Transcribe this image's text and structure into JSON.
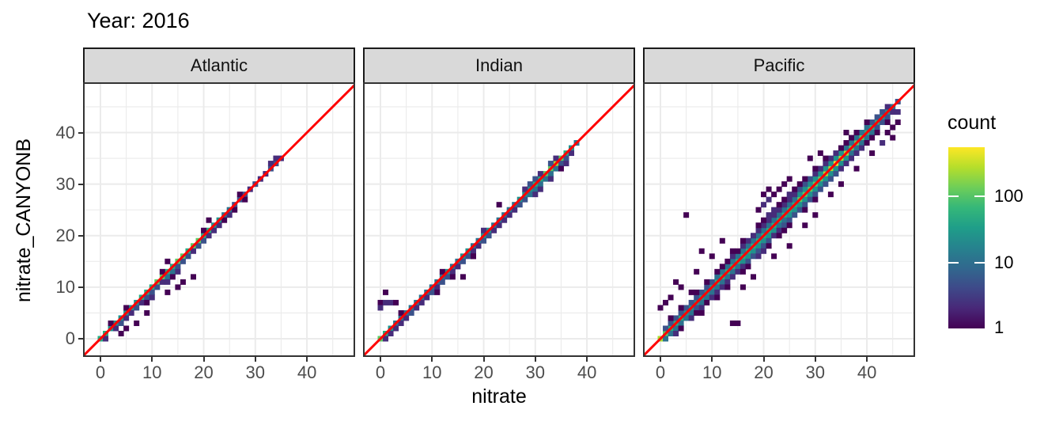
{
  "title": "Year: 2016",
  "axes": {
    "x_title": "nitrate",
    "y_title": "nitrate_CANYONB",
    "x_ticks": [
      0,
      10,
      20,
      30,
      40
    ],
    "y_ticks": [
      0,
      10,
      20,
      30,
      40
    ],
    "minor_ticks": [
      5,
      15,
      25,
      35,
      45
    ]
  },
  "legend": {
    "title": "count",
    "tick_labels": [
      "100",
      "10",
      "1"
    ],
    "tick_values": [
      100,
      10,
      1
    ],
    "scale": "log10"
  },
  "colors": {
    "identity_line": "#ff0000",
    "strip_bg": "#d9d9d9",
    "strip_border": "#1a1a1a",
    "panel_border": "#333333",
    "grid": "#ebebeb",
    "tick_text": "#4d4d4d",
    "bin_palette": [
      "#440154",
      "#472d7b",
      "#3b528b",
      "#2c728e",
      "#21918c",
      "#27ad81",
      "#5ec962",
      "#aadc32",
      "#fde725"
    ],
    "viridis_stops": [
      "#440154",
      "#482878",
      "#3e4989",
      "#31688e",
      "#26828e",
      "#1f9e89",
      "#35b779",
      "#6ece58",
      "#b5de2b",
      "#fde725"
    ]
  },
  "chart_data": {
    "type": "heatmap",
    "title": "Year: 2016",
    "xlabel": "nitrate",
    "ylabel": "nitrate_CANYONB",
    "x_range": [
      -3.1,
      49.2
    ],
    "y_range": [
      -3.2,
      49.3
    ],
    "grid": true,
    "legend_position": "right",
    "bin_size": 1,
    "identity_line": true,
    "level_counts_approx": [
      1,
      2,
      5,
      12,
      30,
      70,
      160,
      350,
      800
    ],
    "facets": [
      {
        "label": "Atlantic",
        "rows": [
          {
            "dy": 0,
            "t0": 0,
            "levels": "665555556667766776776655443332322332"
          },
          {
            "dy": -1,
            "t0": 1,
            "levels": "2023223233324433323322212101"
          },
          {
            "dy": 1,
            "t0": 2,
            "levels": "100100000010000000100000010000022"
          },
          {
            "dy": -2,
            "t0": 9,
            "levels": "1200212"
          }
        ],
        "extra_bins": [
          [
            18,
            12,
            1
          ],
          [
            13,
            9,
            1
          ],
          [
            15,
            10,
            1
          ],
          [
            16,
            11,
            1
          ],
          [
            7,
            3,
            1
          ],
          [
            5,
            2,
            1
          ],
          [
            13,
            15,
            1
          ],
          [
            21,
            23,
            1
          ],
          [
            9,
            5,
            1
          ],
          [
            4,
            1,
            1
          ]
        ]
      },
      {
        "label": "Indian",
        "rows": [
          {
            "dy": 0,
            "t0": 0,
            "levels": "765444444444454455445544444555667787654"
          },
          {
            "dy": -1,
            "t0": 1,
            "levels": "2222232223233223322332222233444444332"
          },
          {
            "dy": 1,
            "t0": 4,
            "levels": "100000001000000020000000233203200"
          },
          {
            "dy": -2,
            "t0": 11,
            "levels": "10010001000000000002202012"
          }
        ],
        "extra_bins": [
          [
            0,
            7,
            1
          ],
          [
            1,
            7,
            2
          ],
          [
            2,
            7,
            2
          ],
          [
            3,
            7,
            1
          ],
          [
            1,
            9,
            1
          ],
          [
            18,
            16,
            1
          ],
          [
            23,
            26,
            1
          ],
          [
            0,
            6,
            2
          ],
          [
            16,
            12,
            1
          ]
        ]
      },
      {
        "label": "Pacific",
        "rows": [
          {
            "dy": 0,
            "t0": 0,
            "levels": "87666555555666666666666666677777889887776665543"
          },
          {
            "dy": -1,
            "t0": 1,
            "levels": "444444344444444555555544555555555555444443332"
          },
          {
            "dy": 1,
            "t0": 1,
            "levels": "33333333334444444444444444555555555444443332"
          },
          {
            "dy": -2,
            "t0": 3,
            "levels": "210212122222223333322333333333332222211101"
          },
          {
            "dy": 2,
            "t0": 2,
            "levels": "101001010111212222222222233322222111101"
          },
          {
            "dy": -3,
            "t0": 8,
            "levels": "10010100110221011100101"
          },
          {
            "dy": 3,
            "t0": 14,
            "levels": "1010011221121110101"
          }
        ],
        "extra_bins": [
          [
            5,
            24,
            1
          ],
          [
            36,
            40,
            1
          ],
          [
            14,
            3,
            1
          ],
          [
            15,
            3,
            1
          ],
          [
            4,
            10,
            1
          ],
          [
            6,
            9,
            1
          ],
          [
            3,
            11,
            1
          ],
          [
            8,
            17,
            1
          ],
          [
            20,
            26,
            2
          ],
          [
            21,
            27,
            2
          ],
          [
            22,
            28,
            1
          ],
          [
            20,
            28,
            1
          ],
          [
            23,
            29,
            1
          ],
          [
            21,
            29,
            1
          ],
          [
            24,
            30,
            1
          ],
          [
            19,
            25,
            1
          ],
          [
            25,
            31,
            1
          ],
          [
            12,
            19,
            1
          ],
          [
            10,
            16,
            1
          ],
          [
            28,
            22,
            1
          ],
          [
            30,
            24,
            1
          ],
          [
            25,
            18,
            1
          ],
          [
            22,
            16,
            1
          ],
          [
            18,
            12,
            1
          ],
          [
            16,
            10,
            1
          ],
          [
            44,
            40,
            1
          ],
          [
            45,
            41,
            1
          ],
          [
            46,
            42,
            1
          ],
          [
            45,
            39,
            1
          ],
          [
            43,
            38,
            2
          ],
          [
            46,
            44,
            2
          ],
          [
            41,
            36,
            1
          ],
          [
            2,
            8,
            1
          ],
          [
            1,
            7,
            1
          ],
          [
            0,
            6,
            1
          ],
          [
            7,
            13,
            1
          ],
          [
            33,
            28,
            1
          ],
          [
            35,
            30,
            1
          ],
          [
            38,
            33,
            1
          ],
          [
            29,
            35,
            1
          ],
          [
            31,
            36,
            1
          ]
        ]
      }
    ]
  }
}
